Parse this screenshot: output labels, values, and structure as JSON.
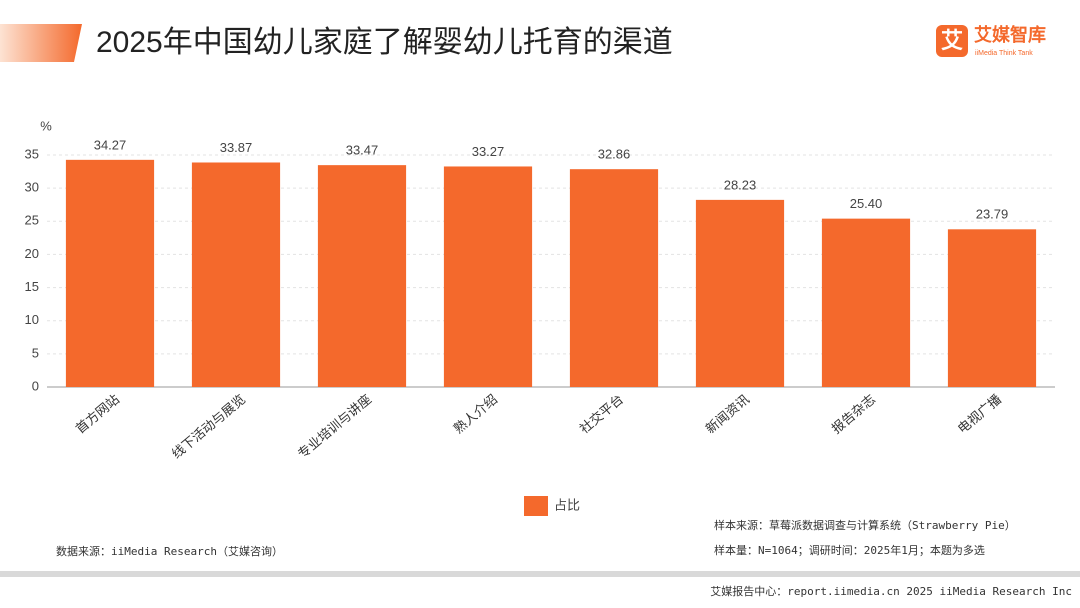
{
  "header": {
    "title": "2025年中国幼儿家庭了解婴幼儿托育的渠道",
    "logo_icon": "艾",
    "logo": "艾媒智库",
    "logo_sub": "iiMedia Think Tank"
  },
  "chart_data": {
    "type": "bar",
    "y_unit": "%",
    "categories": [
      "首方网站",
      "线下活动与展览",
      "专业培训与讲座",
      "熟人介绍",
      "社交平台",
      "新闻资讯",
      "报告杂志",
      "电视广播"
    ],
    "series": [
      {
        "name": "占比",
        "color": "#f4692c",
        "values": [
          34.27,
          33.87,
          33.47,
          33.27,
          32.86,
          28.23,
          25.4,
          23.79
        ],
        "value_labels": [
          "34.27",
          "33.87",
          "33.47",
          "33.27",
          "32.86",
          "28.23",
          "25.40",
          "23.79"
        ]
      }
    ],
    "ylim": [
      0,
      35
    ],
    "yticks": [
      0,
      5,
      10,
      15,
      20,
      25,
      30,
      35
    ],
    "grid": true,
    "legend": "bottom"
  },
  "notes": {
    "source": "数据来源：iiMedia Research（艾媒咨询）",
    "sample_source": "样本来源：草莓派数据调查与计算系统（Strawberry Pie）",
    "sample_size": "样本量：N=1064；调研时间：2025年1月；本题为多选"
  },
  "footer": "艾媒报告中心：report.iimedia.cn  2025 iiMedia Research Inc"
}
